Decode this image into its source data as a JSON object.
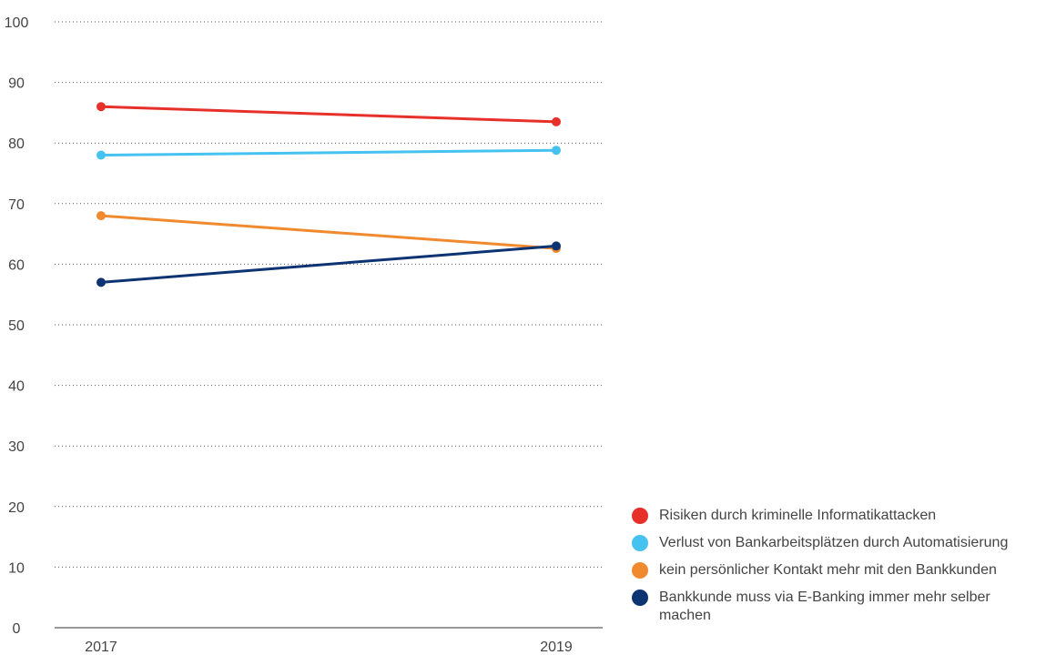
{
  "chart_data": {
    "type": "line",
    "title": "",
    "xlabel": "",
    "ylabel": "",
    "categories": [
      "2017",
      "2019"
    ],
    "ylim": [
      0,
      100
    ],
    "yticks": [
      "0",
      "10",
      "20",
      "30",
      "40",
      "50",
      "60",
      "70",
      "80",
      "90",
      "100"
    ],
    "grid": true,
    "legend_position": "bottom-right",
    "series": [
      {
        "name": "Risiken durch kriminelle Informatikattacken",
        "values": [
          86,
          83.5
        ],
        "color": "#e8302a"
      },
      {
        "name": "Verlust von Bankarbeitsplätzen durch Automatisierung",
        "values": [
          78,
          78.8
        ],
        "color": "#45c2ef"
      },
      {
        "name": "kein persönlicher Kontakt mehr mit den Bankkunden",
        "values": [
          68,
          62.6
        ],
        "color": "#f18a2e"
      },
      {
        "name": "Bankkunde muss via E-Banking immer mehr selber machen",
        "values": [
          57,
          63
        ],
        "color": "#0d3472"
      }
    ]
  }
}
